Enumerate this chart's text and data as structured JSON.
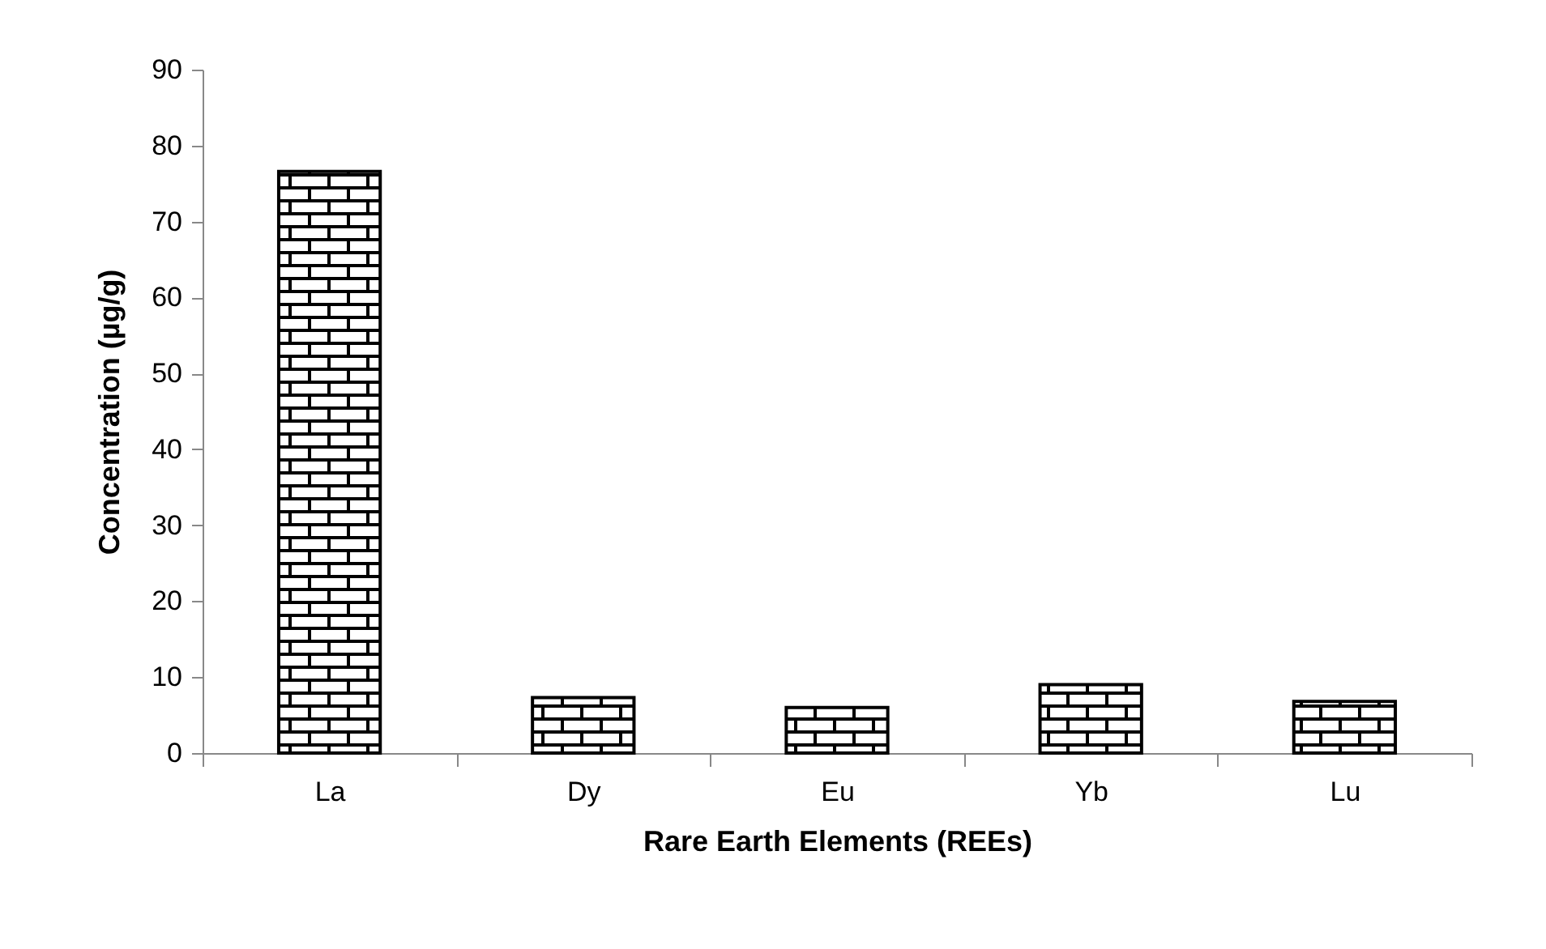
{
  "chart_data": {
    "type": "bar",
    "xlabel": "Rare Earth Elements (REEs)",
    "ylabel": "Concentration (µg/g)",
    "categories": [
      "La",
      "Dy",
      "Eu",
      "Yb",
      "Lu"
    ],
    "values": [
      76.6,
      7.3,
      6.0,
      9.0,
      6.8
    ],
    "color": "#000000",
    "ylim": [
      0,
      90
    ],
    "yticks": [
      0,
      10,
      20,
      30,
      40,
      50,
      60,
      70,
      80,
      90
    ],
    "grid": false
  }
}
